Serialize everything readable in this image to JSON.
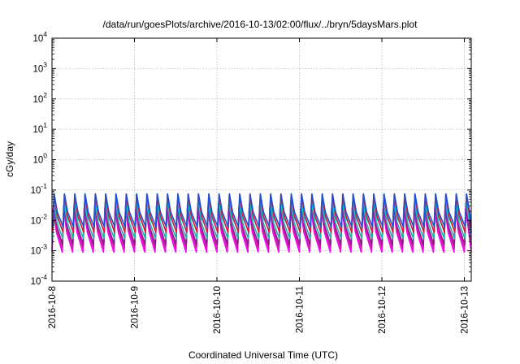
{
  "chart_data": {
    "type": "line",
    "title": "/data/run/goesPlots/archive/2016-10-13/02:00/flux/../bryn/5daysMars.plot",
    "xlabel": "Coordinated Universal Time (UTC)",
    "ylabel": "cGy/day",
    "y_scale": "log",
    "ylim": [
      0.0001,
      10000
    ],
    "xlim": [
      "2016-10-08T00:00",
      "2016-10-13T02:00"
    ],
    "x_ticks": [
      "2016-10-8",
      "2016-10-9",
      "2016-10-10",
      "2016-10-11",
      "2016-10-12",
      "2016-10-13"
    ],
    "y_ticks": [
      {
        "base": "10",
        "exp": "-4"
      },
      {
        "base": "10",
        "exp": "-3"
      },
      {
        "base": "10",
        "exp": "-2"
      },
      {
        "base": "10",
        "exp": "-1"
      },
      {
        "base": "10",
        "exp": "0"
      },
      {
        "base": "10",
        "exp": "1"
      },
      {
        "base": "10",
        "exp": "2"
      },
      {
        "base": "10",
        "exp": "3"
      },
      {
        "base": "10",
        "exp": "4"
      }
    ],
    "grid": true,
    "legend": "none",
    "series": [
      {
        "color": "#ff00ff",
        "peak": 0.025,
        "trough": 0.0009
      },
      {
        "color": "#c81ea0",
        "peak": 0.03,
        "trough": 0.0012
      },
      {
        "color": "#8c1a8c",
        "peak": 0.035,
        "trough": 0.0016
      },
      {
        "color": "#20b2aa",
        "peak": 0.04,
        "trough": 0.0025
      },
      {
        "color": "#00ced1",
        "peak": 0.045,
        "trough": 0.0045
      },
      {
        "color": "#e0183c",
        "peak": 0.07,
        "trough": 0.004
      },
      {
        "color": "#2050d0",
        "peak": 0.075,
        "trough": 0.006
      }
    ]
  }
}
